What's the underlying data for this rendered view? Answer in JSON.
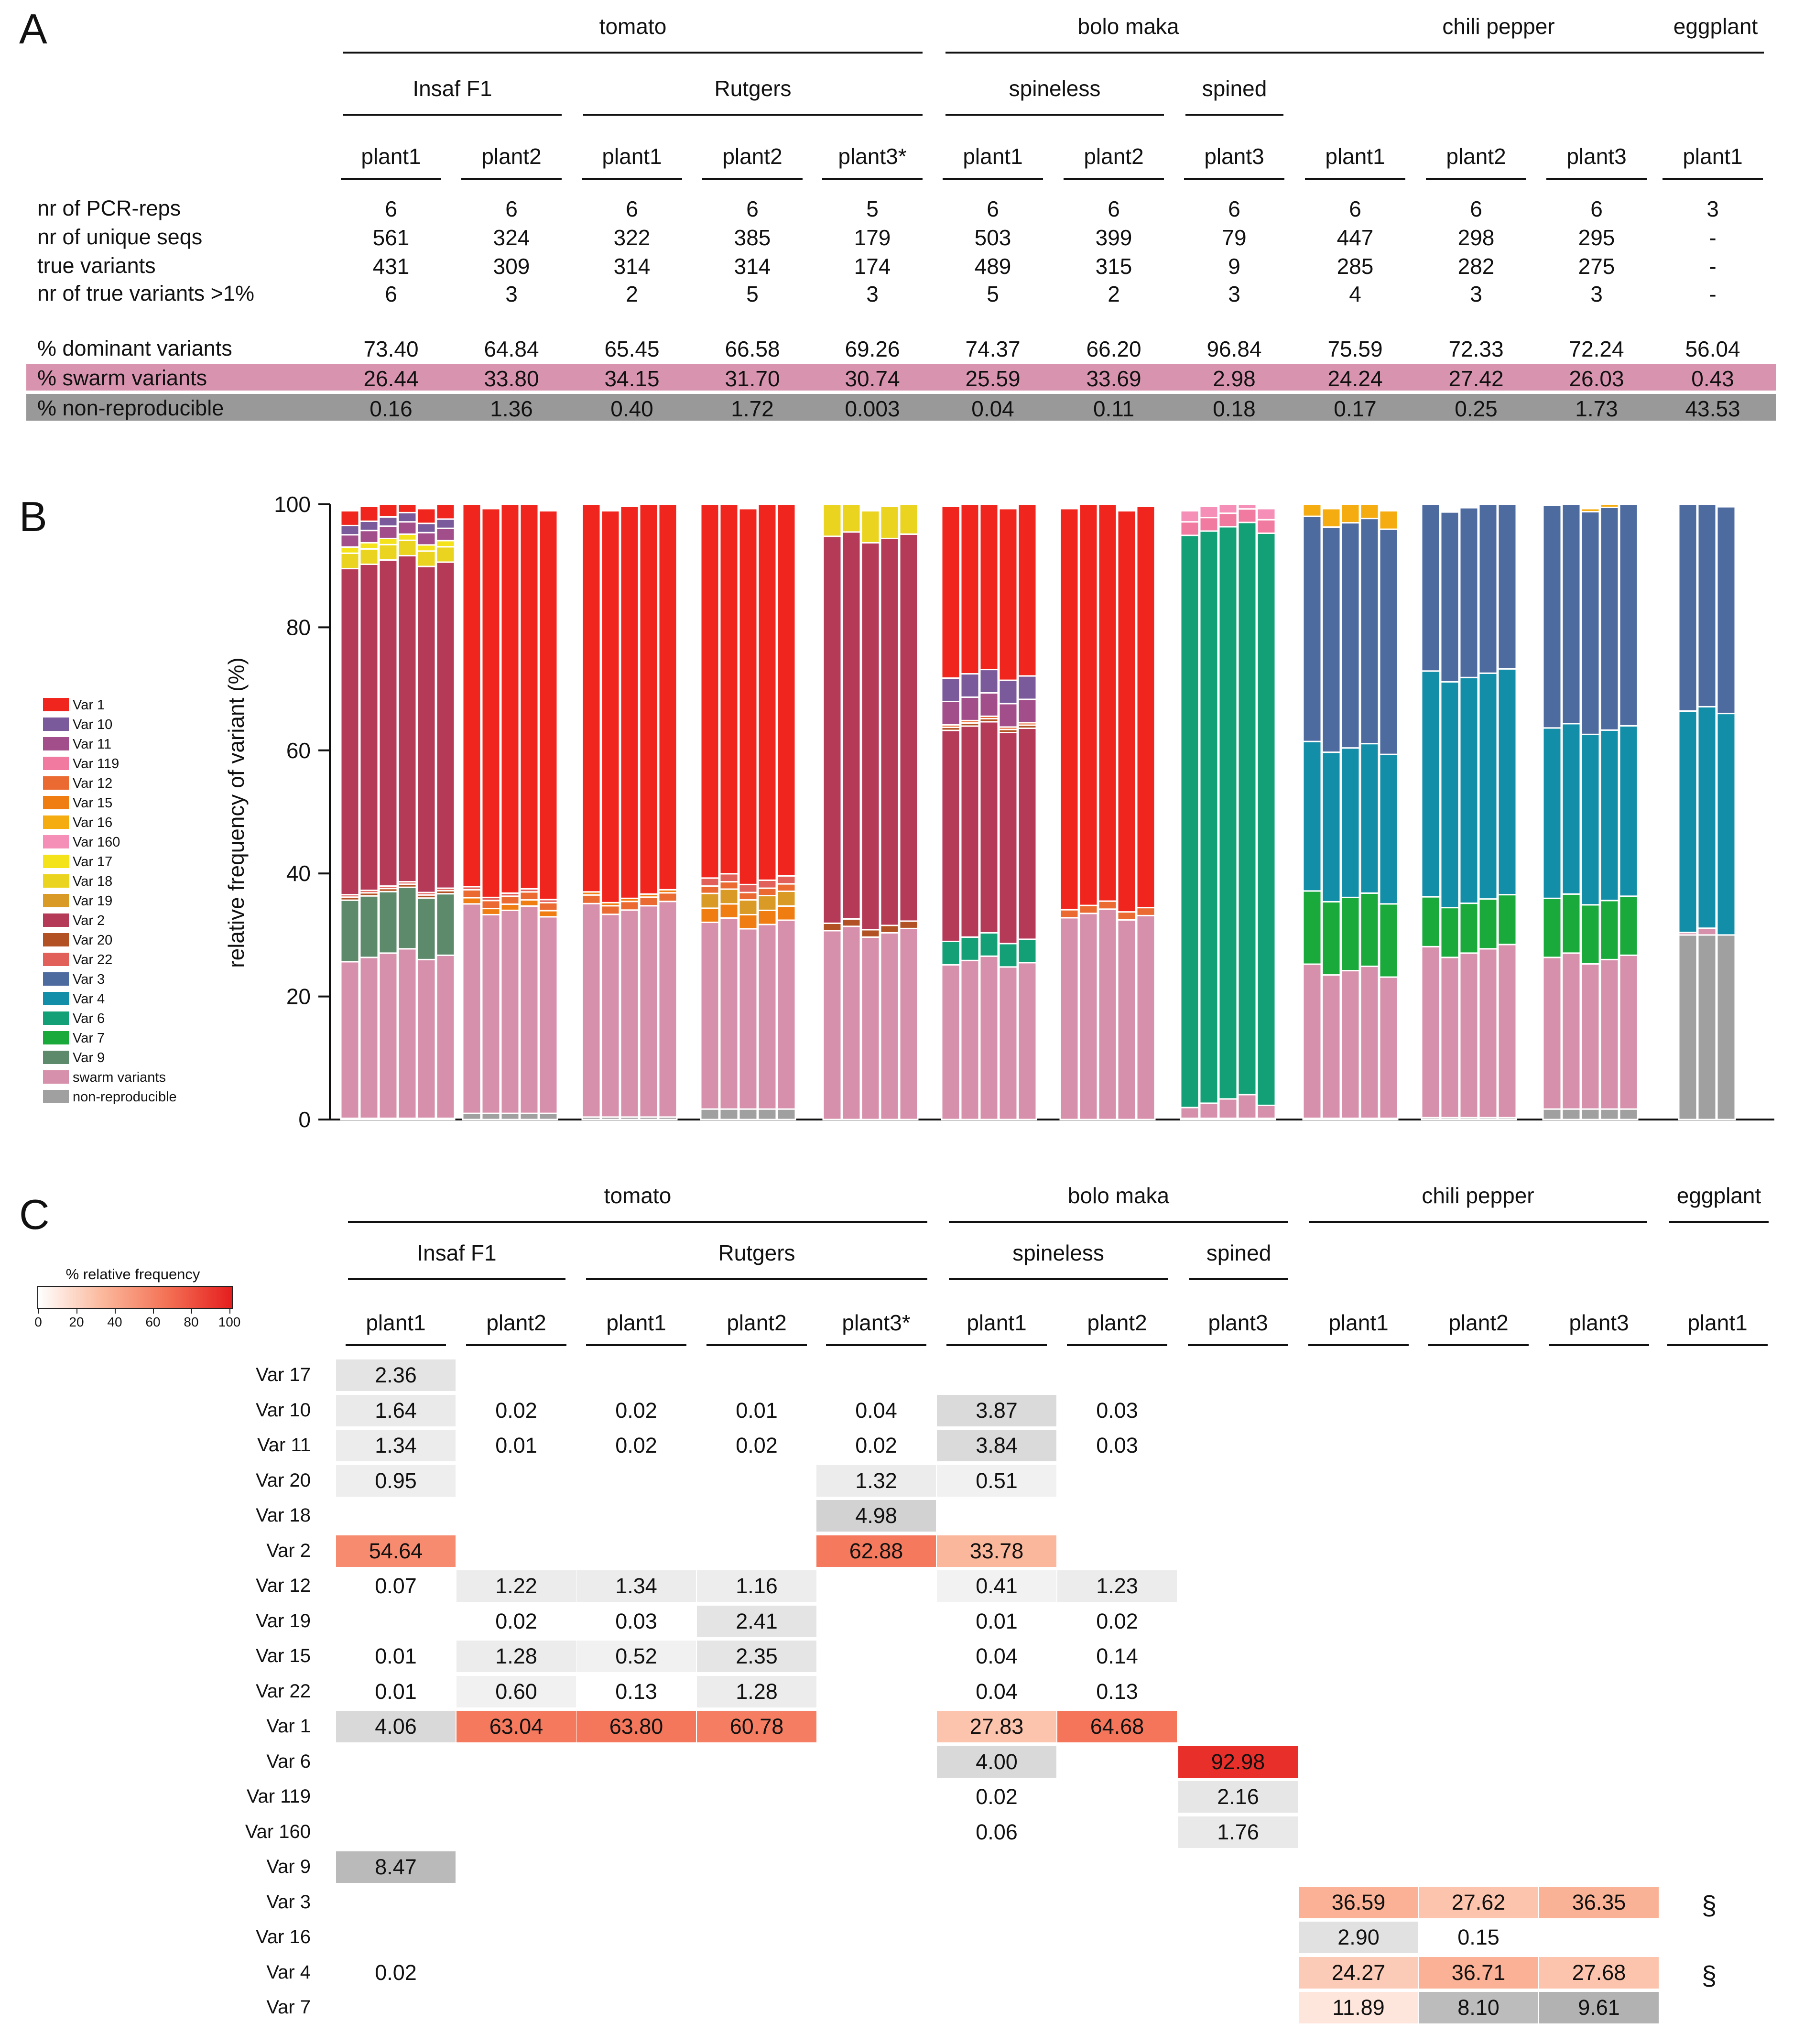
{
  "panel_labels": {
    "a": "A",
    "b": "B",
    "c": "C"
  },
  "groups": {
    "crops": [
      {
        "label": "tomato"
      },
      {
        "label": "bolo maka"
      },
      {
        "label": "chili pepper"
      },
      {
        "label": "eggplant"
      }
    ],
    "varieties": [
      {
        "label": "Insaf F1"
      },
      {
        "label": "Rutgers"
      },
      {
        "label": "spineless"
      },
      {
        "label": "spined"
      }
    ],
    "plants": [
      "plant1",
      "plant2",
      "plant1",
      "plant2",
      "plant3*",
      "plant1",
      "plant2",
      "plant3",
      "plant1",
      "plant2",
      "plant3",
      "plant1"
    ]
  },
  "table_a": {
    "rows": [
      {
        "label": "nr of PCR-reps",
        "values": [
          "6",
          "6",
          "6",
          "6",
          "5",
          "6",
          "6",
          "6",
          "6",
          "6",
          "6",
          "3"
        ]
      },
      {
        "label": "nr of unique seqs",
        "values": [
          "561",
          "324",
          "322",
          "385",
          "179",
          "503",
          "399",
          "79",
          "447",
          "298",
          "295",
          "-"
        ]
      },
      {
        "label": "true variants",
        "values": [
          "431",
          "309",
          "314",
          "314",
          "174",
          "489",
          "315",
          "9",
          "285",
          "282",
          "275",
          "-"
        ]
      },
      {
        "label": "nr of true variants >1%",
        "values": [
          "6",
          "3",
          "2",
          "5",
          "3",
          "5",
          "2",
          "3",
          "4",
          "3",
          "3",
          "-"
        ]
      },
      {
        "label": "% dominant variants",
        "values": [
          "73.40",
          "64.84",
          "65.45",
          "66.58",
          "69.26",
          "74.37",
          "66.20",
          "96.84",
          "75.59",
          "72.33",
          "72.24",
          "56.04"
        ]
      },
      {
        "label": "% swarm variants",
        "values": [
          "26.44",
          "33.80",
          "34.15",
          "31.70",
          "30.74",
          "25.59",
          "33.69",
          "2.98",
          "24.24",
          "27.42",
          "26.03",
          "0.43"
        ],
        "highlight": "#d894ae"
      },
      {
        "label": "% non-reproducible",
        "values": [
          "0.16",
          "1.36",
          "0.40",
          "1.72",
          "0.003",
          "0.04",
          "0.11",
          "0.18",
          "0.17",
          "0.25",
          "1.73",
          "43.53"
        ],
        "highlight": "#999999"
      }
    ]
  },
  "chart_data": {
    "type": "bar",
    "stacked": true,
    "ylabel": "relative frequency of variant (%)",
    "ylim": [
      0,
      100
    ],
    "yticks": [
      "0",
      "20",
      "40",
      "60",
      "80",
      "100"
    ],
    "legend": [
      {
        "name": "Var 1",
        "color": "#f0261e"
      },
      {
        "name": "Var 10",
        "color": "#7a5a9a"
      },
      {
        "name": "Var 11",
        "color": "#a24e8a"
      },
      {
        "name": "Var 119",
        "color": "#f07aa0"
      },
      {
        "name": "Var 12",
        "color": "#ea6a32"
      },
      {
        "name": "Var 15",
        "color": "#f07d12"
      },
      {
        "name": "Var 16",
        "color": "#f5ac10"
      },
      {
        "name": "Var 160",
        "color": "#f58fb8"
      },
      {
        "name": "Var 17",
        "color": "#f4e21a"
      },
      {
        "name": "Var 18",
        "color": "#ebd420"
      },
      {
        "name": "Var 19",
        "color": "#d99a26"
      },
      {
        "name": "Var 2",
        "color": "#b43a58"
      },
      {
        "name": "Var 20",
        "color": "#b25224"
      },
      {
        "name": "Var 22",
        "color": "#e2605a"
      },
      {
        "name": "Var 3",
        "color": "#4e6ba0"
      },
      {
        "name": "Var 4",
        "color": "#128ea8"
      },
      {
        "name": "Var 6",
        "color": "#13a077"
      },
      {
        "name": "Var 7",
        "color": "#1aaa3c"
      },
      {
        "name": "Var 9",
        "color": "#5e8a6c"
      },
      {
        "name": "swarm variants",
        "color": "#d790ab"
      },
      {
        "name": "non-reproducible",
        "color": "#a0a0a0"
      }
    ],
    "groups": [
      {
        "n": 6,
        "segs": [
          [
            "non-reproducible",
            0.2
          ],
          [
            "swarm variants",
            26.5
          ],
          [
            "Var 9",
            10
          ],
          [
            "Var 20",
            0.5
          ],
          [
            "Var 22",
            0.4
          ],
          [
            "Var 2",
            53
          ],
          [
            "Var 18",
            2.5
          ],
          [
            "Var 17",
            1
          ],
          [
            "Var 11",
            2
          ],
          [
            "Var 10",
            1.5
          ],
          [
            "Var 1",
            2.4
          ]
        ]
      },
      {
        "n": 5,
        "segs": [
          [
            "non-reproducible",
            1
          ],
          [
            "swarm variants",
            33
          ],
          [
            "Var 15",
            1
          ],
          [
            "Var 12",
            1.3
          ],
          [
            "Var 22",
            0.5
          ],
          [
            "Var 1",
            63.2
          ]
        ]
      },
      {
        "n": 5,
        "segs": [
          [
            "non-reproducible",
            0.4
          ],
          [
            "swarm variants",
            34
          ],
          [
            "Var 12",
            1.4
          ],
          [
            "Var 15",
            0.5
          ],
          [
            "Var 1",
            63.7
          ]
        ]
      },
      {
        "n": 5,
        "segs": [
          [
            "non-reproducible",
            1.7
          ],
          [
            "swarm variants",
            30
          ],
          [
            "Var 15",
            2.3
          ],
          [
            "Var 19",
            2.4
          ],
          [
            "Var 12",
            1.2
          ],
          [
            "Var 22",
            1.3
          ],
          [
            "Var 1",
            61.1
          ]
        ]
      },
      {
        "n": 5,
        "segs": [
          [
            "swarm variants",
            30.7
          ],
          [
            "Var 20",
            1.2
          ],
          [
            "Var 2",
            62.9
          ],
          [
            "Var 18",
            5.2
          ]
        ]
      },
      {
        "n": 5,
        "segs": [
          [
            "swarm variants",
            25.5
          ],
          [
            "Var 6",
            3.8
          ],
          [
            "Var 2",
            34.3
          ],
          [
            "Var 20",
            0.5
          ],
          [
            "Var 12",
            0.4
          ],
          [
            "Var 11",
            3.8
          ],
          [
            "Var 10",
            3.8
          ],
          [
            "Var 1",
            27.9
          ]
        ]
      },
      {
        "n": 5,
        "segs": [
          [
            "swarm variants",
            33.5
          ],
          [
            "Var 12",
            1.3
          ],
          [
            "Var 1",
            65.2
          ]
        ]
      },
      {
        "n": 5,
        "segs": [
          [
            "non-reproducible",
            0.2
          ],
          [
            "swarm variants",
            2.8
          ],
          [
            "Var 6",
            93
          ],
          [
            "Var 119",
            2.2
          ],
          [
            "Var 160",
            1.8
          ]
        ]
      },
      {
        "n": 5,
        "segs": [
          [
            "non-reproducible",
            0.2
          ],
          [
            "swarm variants",
            24
          ],
          [
            "Var 7",
            11.9
          ],
          [
            "Var 4",
            24.3
          ],
          [
            "Var 3",
            36.6
          ],
          [
            "Var 16",
            3
          ]
        ]
      },
      {
        "n": 5,
        "segs": [
          [
            "non-reproducible",
            0.3
          ],
          [
            "swarm variants",
            27.1
          ],
          [
            "Var 7",
            8.1
          ],
          [
            "Var 4",
            36.7
          ],
          [
            "Var 3",
            27.6
          ],
          [
            "Var 16",
            0.2
          ]
        ]
      },
      {
        "n": 5,
        "segs": [
          [
            "non-reproducible",
            1.7
          ],
          [
            "swarm variants",
            24.3
          ],
          [
            "Var 7",
            9.6
          ],
          [
            "Var 4",
            27.7
          ],
          [
            "Var 3",
            36.2
          ],
          [
            "Var 16",
            0.5
          ]
        ]
      },
      {
        "n": 3,
        "segs": [
          [
            "non-reproducible",
            30
          ],
          [
            "swarm variants",
            0.4
          ],
          [
            "Var 4",
            36
          ],
          [
            "Var 3",
            33.6
          ]
        ]
      }
    ]
  },
  "heatmap": {
    "scale_title": "% relative frequency",
    "scale_ticks": [
      "0",
      "20",
      "40",
      "60",
      "80",
      "100"
    ],
    "rows": [
      {
        "label": "Var 17",
        "values": [
          "2.36",
          "",
          "",
          "",
          "",
          "",
          "",
          "",
          "",
          "",
          "",
          ""
        ],
        "shade": [
          1,
          0,
          0,
          0,
          0,
          0,
          0,
          0,
          0,
          0,
          0,
          0
        ]
      },
      {
        "label": "Var 10",
        "values": [
          "1.64",
          "0.02",
          "0.02",
          "0.01",
          "0.04",
          "3.87",
          "0.03",
          "",
          "",
          "",
          "",
          ""
        ],
        "shade": [
          1,
          0,
          0,
          0,
          0,
          1,
          0,
          0,
          0,
          0,
          0,
          0
        ]
      },
      {
        "label": "Var 11",
        "values": [
          "1.34",
          "0.01",
          "0.02",
          "0.02",
          "0.02",
          "3.84",
          "0.03",
          "",
          "",
          "",
          "",
          ""
        ],
        "shade": [
          1,
          0,
          0,
          0,
          0,
          1,
          0,
          0,
          0,
          0,
          0,
          0
        ]
      },
      {
        "label": "Var 20",
        "values": [
          "0.95",
          "",
          "",
          "",
          "1.32",
          "0.51",
          "",
          "",
          "",
          "",
          "",
          ""
        ],
        "shade": [
          1,
          0,
          0,
          0,
          1,
          1,
          0,
          0,
          0,
          0,
          0,
          0
        ]
      },
      {
        "label": "Var 18",
        "values": [
          "",
          "",
          "",
          "",
          "4.98",
          "",
          "",
          "",
          "",
          "",
          "",
          ""
        ],
        "shade": [
          0,
          0,
          0,
          0,
          1,
          0,
          0,
          0,
          0,
          0,
          0,
          0
        ]
      },
      {
        "label": "Var 2",
        "values": [
          "54.64",
          "",
          "",
          "",
          "62.88",
          "33.78",
          "",
          "",
          "",
          "",
          "",
          ""
        ],
        "shade": [
          1,
          0,
          0,
          0,
          1,
          1,
          0,
          0,
          0,
          0,
          0,
          0
        ]
      },
      {
        "label": "Var 12",
        "values": [
          "0.07",
          "1.22",
          "1.34",
          "1.16",
          "",
          "0.41",
          "1.23",
          "",
          "",
          "",
          "",
          ""
        ],
        "shade": [
          0,
          1,
          1,
          1,
          0,
          1,
          1,
          0,
          0,
          0,
          0,
          0
        ]
      },
      {
        "label": "Var 19",
        "values": [
          "",
          "0.02",
          "0.03",
          "2.41",
          "",
          "0.01",
          "0.02",
          "",
          "",
          "",
          "",
          ""
        ],
        "shade": [
          0,
          0,
          0,
          1,
          0,
          0,
          0,
          0,
          0,
          0,
          0,
          0
        ]
      },
      {
        "label": "Var 15",
        "values": [
          "0.01",
          "1.28",
          "0.52",
          "2.35",
          "",
          "0.04",
          "0.14",
          "",
          "",
          "",
          "",
          ""
        ],
        "shade": [
          0,
          1,
          1,
          1,
          0,
          0,
          0,
          0,
          0,
          0,
          0,
          0
        ]
      },
      {
        "label": "Var 22",
        "values": [
          "0.01",
          "0.60",
          "0.13",
          "1.28",
          "",
          "0.04",
          "0.13",
          "",
          "",
          "",
          "",
          ""
        ],
        "shade": [
          0,
          1,
          0,
          1,
          0,
          0,
          0,
          0,
          0,
          0,
          0,
          0
        ]
      },
      {
        "label": "Var 1",
        "values": [
          "4.06",
          "63.04",
          "63.80",
          "60.78",
          "",
          "27.83",
          "64.68",
          "",
          "",
          "",
          "",
          ""
        ],
        "shade": [
          1,
          1,
          1,
          1,
          0,
          1,
          1,
          0,
          0,
          0,
          0,
          0
        ]
      },
      {
        "label": "Var 6",
        "values": [
          "",
          "",
          "",
          "",
          "",
          "4.00",
          "",
          "92.98",
          "",
          "",
          "",
          ""
        ],
        "shade": [
          0,
          0,
          0,
          0,
          0,
          1,
          0,
          1,
          0,
          0,
          0,
          0
        ]
      },
      {
        "label": "Var 119",
        "values": [
          "",
          "",
          "",
          "",
          "",
          "0.02",
          "",
          "2.16",
          "",
          "",
          "",
          ""
        ],
        "shade": [
          0,
          0,
          0,
          0,
          0,
          0,
          0,
          1,
          0,
          0,
          0,
          0
        ]
      },
      {
        "label": "Var 160",
        "values": [
          "",
          "",
          "",
          "",
          "",
          "0.06",
          "",
          "1.76",
          "",
          "",
          "",
          ""
        ],
        "shade": [
          0,
          0,
          0,
          0,
          0,
          0,
          0,
          1,
          0,
          0,
          0,
          0
        ]
      },
      {
        "label": "Var 9",
        "values": [
          "8.47",
          "",
          "",
          "",
          "",
          "",
          "",
          "",
          "",
          "",
          "",
          ""
        ],
        "shade": [
          1,
          0,
          0,
          0,
          0,
          0,
          0,
          0,
          0,
          0,
          0,
          0
        ]
      },
      {
        "label": "Var 3",
        "values": [
          "",
          "",
          "",
          "",
          "",
          "",
          "",
          "",
          "36.59",
          "27.62",
          "36.35",
          ""
        ],
        "shade": [
          0,
          0,
          0,
          0,
          0,
          0,
          0,
          0,
          1,
          1,
          1,
          0
        ],
        "mark": "§"
      },
      {
        "label": "Var 16",
        "values": [
          "",
          "",
          "",
          "",
          "",
          "",
          "",
          "",
          "2.90",
          "0.15",
          "",
          ""
        ],
        "shade": [
          0,
          0,
          0,
          0,
          0,
          0,
          0,
          0,
          1,
          0,
          0,
          0
        ]
      },
      {
        "label": "Var 4",
        "values": [
          "0.02",
          "",
          "",
          "",
          "",
          "",
          "",
          "",
          "24.27",
          "36.71",
          "27.68",
          ""
        ],
        "shade": [
          0,
          0,
          0,
          0,
          0,
          0,
          0,
          0,
          1,
          1,
          1,
          0
        ],
        "mark": "§"
      },
      {
        "label": "Var 7",
        "values": [
          "",
          "",
          "",
          "",
          "",
          "",
          "",
          "",
          "11.89",
          "8.10",
          "9.61",
          ""
        ],
        "shade": [
          0,
          0,
          0,
          0,
          0,
          0,
          0,
          0,
          1,
          1,
          1,
          0
        ]
      }
    ]
  }
}
